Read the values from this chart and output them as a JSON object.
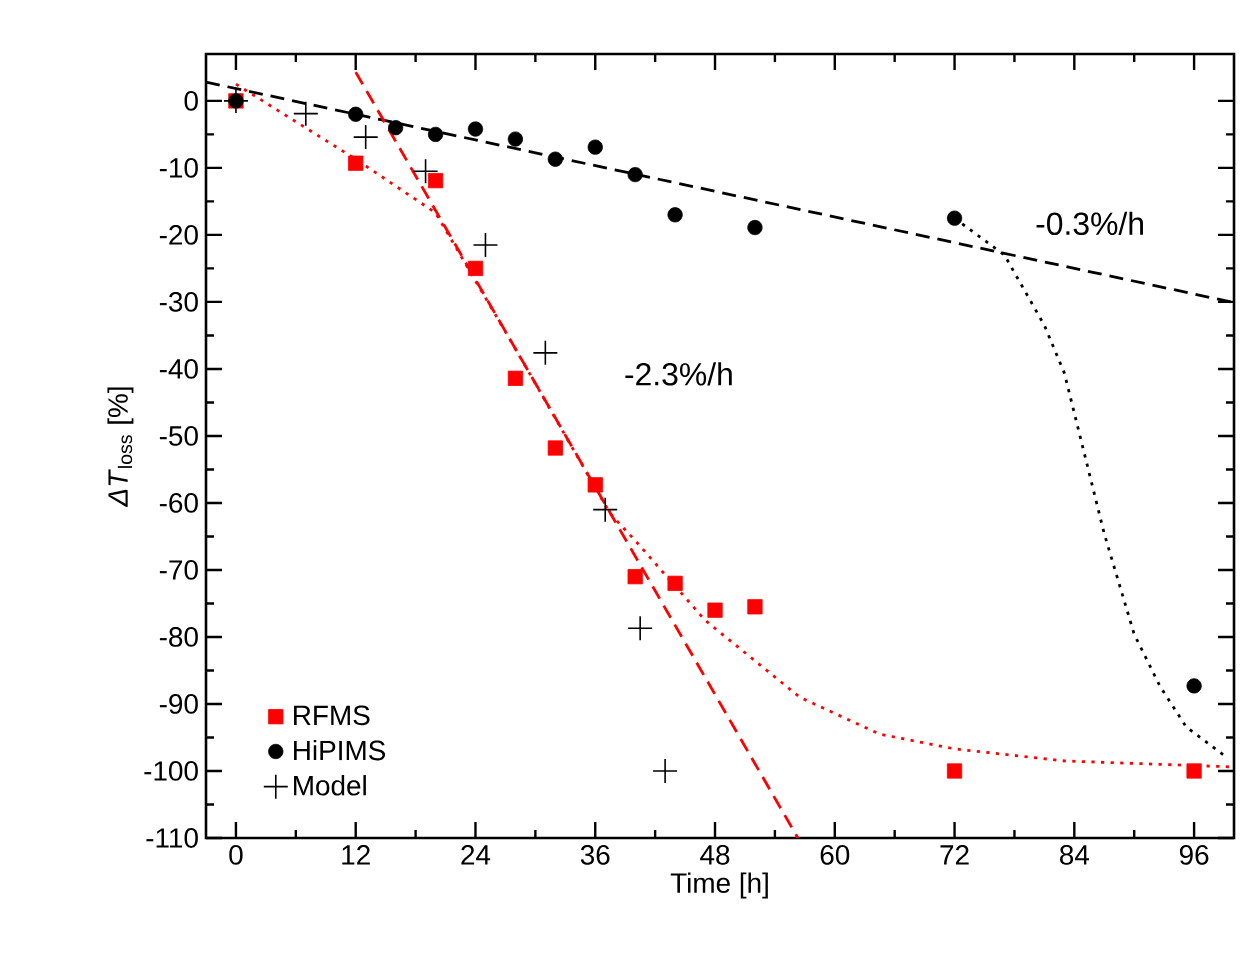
{
  "chart_data": {
    "type": "scatter",
    "xlabel": "Time [h]",
    "ylabel": "*ΔT*$_{loss}$ [%]",
    "xlim": [
      -3,
      100
    ],
    "ylim": [
      -110,
      7
    ],
    "xticks": [
      0,
      12,
      24,
      36,
      48,
      60,
      72,
      84,
      96
    ],
    "yticks": [
      0,
      -10,
      -20,
      -30,
      -40,
      -50,
      -60,
      -70,
      -80,
      -90,
      -100,
      -110
    ],
    "legend": "bottom left",
    "grid": false,
    "annotations": [
      "-2.3%/h",
      "-0.3%/h"
    ],
    "series": [
      {
        "name": "RFMS",
        "marker": "square",
        "color": "#ff0000",
        "x": [
          0,
          12,
          20,
          24,
          28,
          32,
          36,
          40,
          44,
          48,
          52,
          72,
          96
        ],
        "values": [
          0,
          -9.3,
          -11.9,
          -25,
          -41.4,
          -51.8,
          -57.3,
          -71,
          -72,
          -76,
          -75.5,
          -100,
          -100
        ]
      },
      {
        "name": "HiPIMS",
        "marker": "circle",
        "color": "#000000",
        "x": [
          0,
          12,
          16,
          20,
          24,
          28,
          32,
          36,
          40,
          44,
          52,
          72,
          96
        ],
        "values": [
          0,
          -2,
          -4,
          -5,
          -4.2,
          -5.7,
          -8.7,
          -6.9,
          -11,
          -17,
          -18.9,
          -17.5,
          -87.3
        ]
      },
      {
        "name": "Model",
        "marker": "cross",
        "color": "#000000",
        "x": [
          0,
          7,
          13,
          19,
          25,
          31,
          37,
          40.5,
          43
        ],
        "values": [
          0,
          -1.9,
          -5.4,
          -10.5,
          -21.5,
          -37.6,
          -61,
          -78.7,
          -100
        ]
      },
      {
        "type": "line",
        "line_style": "dashed",
        "color": "#000000",
        "x": [
          -3,
          100
        ],
        "values": [
          2.8,
          -30.1
        ]
      },
      {
        "type": "line",
        "line_style": "dashed",
        "color": "#ff0000",
        "x": [
          12,
          56.3
        ],
        "values": [
          4.3,
          -110
        ]
      },
      {
        "type": "line",
        "line_style": "dotted",
        "color": "#ff0000",
        "x": [
          0,
          12,
          20,
          28,
          37.5,
          40,
          47,
          56.5,
          64.5,
          72,
          83,
          100
        ],
        "values": [
          2.5,
          -8.7,
          -16.7,
          -37,
          -61.6,
          -65.6,
          -77.5,
          -89,
          -94.5,
          -96.7,
          -98.5,
          -99.4
        ]
      },
      {
        "type": "line",
        "line_style": "dotted",
        "color": "#000000",
        "x": [
          72,
          77,
          81,
          83,
          86,
          87,
          90,
          92.6,
          95.2,
          99.2
        ],
        "values": [
          -17.5,
          -23,
          -33.5,
          -40.6,
          -58.6,
          -64.6,
          -79.6,
          -87.4,
          -93.4,
          -97.9
        ]
      }
    ]
  }
}
